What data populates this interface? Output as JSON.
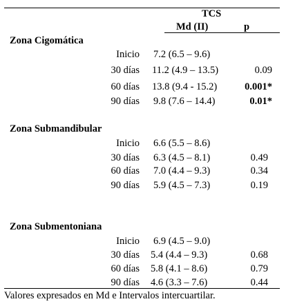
{
  "header": {
    "group": "TCS",
    "measure": "Md (II)",
    "p_label": "p"
  },
  "sections": [
    {
      "title": "Zona Cigomática",
      "rows": [
        {
          "time": "Inicio",
          "value": "7.2 (6.5 – 9.6)",
          "p": ""
        },
        {
          "time": "30 días",
          "value": "11.2 (4.9 – 13.5)",
          "p": "0.09"
        },
        {
          "time": "60 días",
          "value": "13.8 (9.4 - 15.2)",
          "p": "0.001*",
          "p_bold": true
        },
        {
          "time": "90 días",
          "value": "9.8 (7.6 – 14.4)",
          "p": "0.01*",
          "p_bold": true
        }
      ]
    },
    {
      "title": "Zona Submandibular",
      "rows": [
        {
          "time": "Inicio",
          "value": "6.6 (5.5 – 8.6)",
          "p": ""
        },
        {
          "time": "30 días",
          "value": "6.3 (4.5 – 8.1)",
          "p": "0.49"
        },
        {
          "time": "60 días",
          "value": "7.0 (4.4 – 9.3)",
          "p": "0.34"
        },
        {
          "time": "90 días",
          "value": "5.9 (4.5 – 7.3)",
          "p": "0.19"
        }
      ]
    },
    {
      "title": "Zona Submentoniana",
      "rows": [
        {
          "time": "Inicio",
          "value": "6.9 (4.5 – 9.0)",
          "p": ""
        },
        {
          "time": "30 días",
          "value": "5.4 (4.4 – 9.3)",
          "p": "0.68"
        },
        {
          "time": "60 días",
          "value": "5.8 (4.1 – 8.6)",
          "p": "0.79"
        },
        {
          "time": "90 días",
          "value": "4.6 (3.3 – 7.6)",
          "p": "0.44"
        }
      ]
    }
  ],
  "footnote": "Valores expresados en Md e Intervalos intercuartilar."
}
